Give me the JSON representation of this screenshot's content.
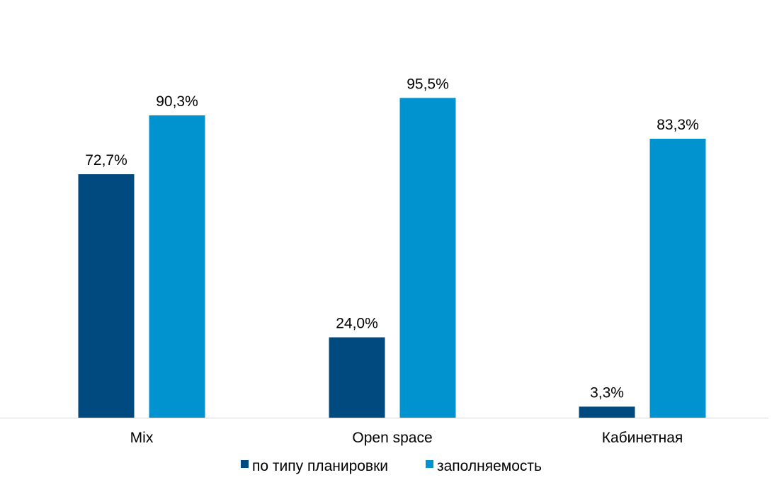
{
  "chart_data": {
    "type": "bar",
    "categories": [
      "Mix",
      "Open space",
      "Кабинетная"
    ],
    "series": [
      {
        "name": "по типу планировки",
        "values": [
          72.7,
          24.0,
          3.3
        ],
        "labels": [
          "72,7%",
          "24,0%",
          "3,3%"
        ],
        "color": "#004a80"
      },
      {
        "name": "заполняемость",
        "values": [
          90.3,
          95.5,
          83.3
        ],
        "labels": [
          "90,3%",
          "95,5%",
          "83,3%"
        ],
        "color": "#0093d0"
      }
    ],
    "title": "",
    "xlabel": "",
    "ylabel": "",
    "ylim": [
      0,
      100
    ],
    "grid": false,
    "legend_position": "bottom",
    "baseline_color": "#d9d9d9"
  }
}
